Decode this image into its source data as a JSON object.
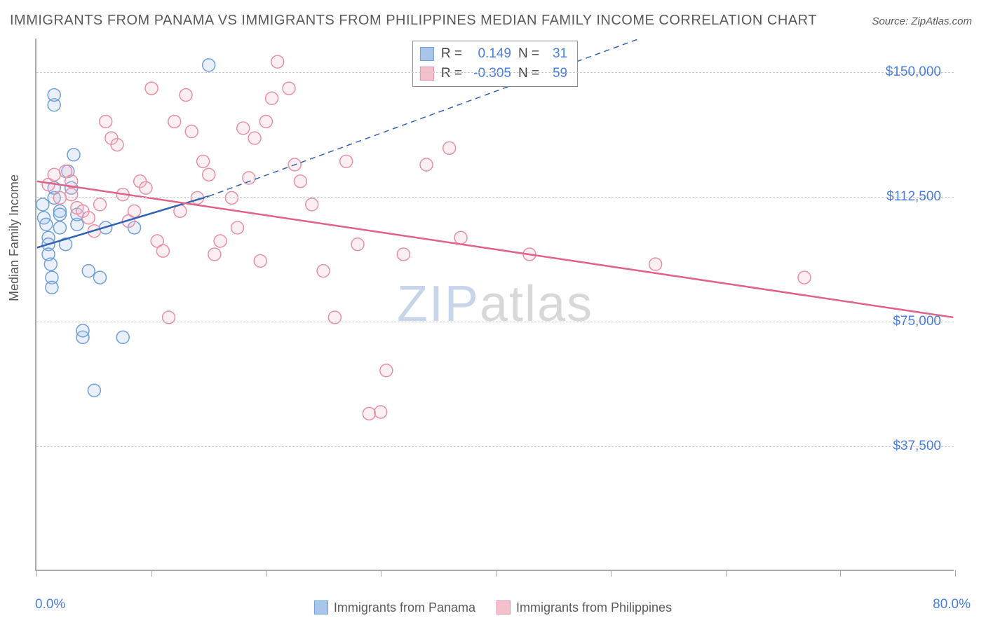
{
  "title": "IMMIGRANTS FROM PANAMA VS IMMIGRANTS FROM PHILIPPINES MEDIAN FAMILY INCOME CORRELATION CHART",
  "source": "Source: ZipAtlas.com",
  "y_axis_title": "Median Family Income",
  "x_min_label": "0.0%",
  "x_max_label": "80.0%",
  "watermark_a": "ZIP",
  "watermark_b": "atlas",
  "chart": {
    "type": "scatter",
    "xlim": [
      0,
      80
    ],
    "ylim": [
      0,
      160000
    ],
    "y_ticks": [
      37500,
      75000,
      112500,
      150000
    ],
    "y_tick_labels": [
      "$37,500",
      "$75,000",
      "$112,500",
      "$150,000"
    ],
    "x_ticks": [
      0,
      10,
      20,
      30,
      40,
      50,
      60,
      70,
      80
    ],
    "grid_color": "#cccccc",
    "axis_color": "#aaaaaa",
    "tick_label_color": "#4a7fe0",
    "background_color": "#ffffff",
    "marker_radius": 9,
    "marker_stroke_width": 1.5,
    "marker_fill_opacity": 0.25,
    "series": [
      {
        "name": "Immigrants from Panama",
        "color_stroke": "#6f9fd8",
        "color_fill": "#a9c5ea",
        "R": "0.149",
        "N": "31",
        "trend": {
          "x1": 0,
          "y1": 97000,
          "x2": 15,
          "y2": 112500,
          "dashed_ext": {
            "x2": 55,
            "y2": 163000
          },
          "stroke": "#2f62b5",
          "width": 2.5
        },
        "points": [
          [
            0.5,
            110000
          ],
          [
            0.6,
            106000
          ],
          [
            0.8,
            104000
          ],
          [
            1.0,
            100000
          ],
          [
            1.0,
            98000
          ],
          [
            1.0,
            95000
          ],
          [
            1.2,
            92000
          ],
          [
            1.3,
            88000
          ],
          [
            1.3,
            85000
          ],
          [
            1.5,
            112000
          ],
          [
            1.5,
            115000
          ],
          [
            1.5,
            140000
          ],
          [
            1.5,
            143000
          ],
          [
            2.0,
            103000
          ],
          [
            2.0,
            108000
          ],
          [
            2.0,
            107000
          ],
          [
            2.5,
            98000
          ],
          [
            2.7,
            120000
          ],
          [
            3.0,
            115000
          ],
          [
            3.2,
            125000
          ],
          [
            3.5,
            104000
          ],
          [
            3.5,
            107000
          ],
          [
            4.0,
            70000
          ],
          [
            4.0,
            72000
          ],
          [
            4.5,
            90000
          ],
          [
            5.0,
            54000
          ],
          [
            5.5,
            88000
          ],
          [
            6.0,
            103000
          ],
          [
            7.5,
            70000
          ],
          [
            8.5,
            103000
          ],
          [
            15.0,
            152000
          ]
        ]
      },
      {
        "name": "Immigrants from Philippines",
        "color_stroke": "#e78fa6",
        "color_fill": "#f4c0cc",
        "R": "-0.305",
        "N": "59",
        "trend": {
          "x1": 0,
          "y1": 117000,
          "x2": 80,
          "y2": 76000,
          "dashed_ext": null,
          "stroke": "#e06288",
          "width": 2.5
        },
        "points": [
          [
            1.0,
            116000
          ],
          [
            1.5,
            119000
          ],
          [
            2.0,
            112000
          ],
          [
            2.5,
            120000
          ],
          [
            3.0,
            117000
          ],
          [
            3.0,
            113000
          ],
          [
            3.5,
            109000
          ],
          [
            4.0,
            108000
          ],
          [
            4.5,
            106000
          ],
          [
            5.0,
            102000
          ],
          [
            5.5,
            110000
          ],
          [
            6.0,
            135000
          ],
          [
            6.5,
            130000
          ],
          [
            7.0,
            128000
          ],
          [
            7.5,
            113000
          ],
          [
            8.0,
            105000
          ],
          [
            8.5,
            108000
          ],
          [
            9.0,
            117000
          ],
          [
            9.5,
            115000
          ],
          [
            10.0,
            145000
          ],
          [
            10.5,
            99000
          ],
          [
            11.0,
            96000
          ],
          [
            11.5,
            76000
          ],
          [
            12.0,
            135000
          ],
          [
            12.5,
            108000
          ],
          [
            13.0,
            143000
          ],
          [
            13.5,
            132000
          ],
          [
            14.0,
            112000
          ],
          [
            14.5,
            123000
          ],
          [
            15.0,
            119000
          ],
          [
            15.5,
            95000
          ],
          [
            16.0,
            99000
          ],
          [
            17.0,
            112000
          ],
          [
            17.5,
            103000
          ],
          [
            18.0,
            133000
          ],
          [
            18.5,
            118000
          ],
          [
            19.0,
            130000
          ],
          [
            19.5,
            93000
          ],
          [
            20.0,
            135000
          ],
          [
            20.5,
            142000
          ],
          [
            21.0,
            153000
          ],
          [
            22.0,
            145000
          ],
          [
            22.5,
            122000
          ],
          [
            23.0,
            117000
          ],
          [
            24.0,
            110000
          ],
          [
            25.0,
            90000
          ],
          [
            26.0,
            76000
          ],
          [
            27.0,
            123000
          ],
          [
            28.0,
            98000
          ],
          [
            29.0,
            47000
          ],
          [
            30.0,
            47500
          ],
          [
            30.5,
            60000
          ],
          [
            32.0,
            95000
          ],
          [
            34.0,
            122000
          ],
          [
            36.0,
            127000
          ],
          [
            37.0,
            100000
          ],
          [
            43.0,
            95000
          ],
          [
            54.0,
            92000
          ],
          [
            67.0,
            88000
          ]
        ]
      }
    ]
  },
  "legend_bottom": [
    {
      "label": "Immigrants from Panama",
      "stroke": "#6f9fd8",
      "fill": "#a9c5ea"
    },
    {
      "label": "Immigrants from Philippines",
      "stroke": "#e78fa6",
      "fill": "#f4c0cc"
    }
  ],
  "legend_box": {
    "r_label": "R =",
    "n_label": "N ="
  }
}
